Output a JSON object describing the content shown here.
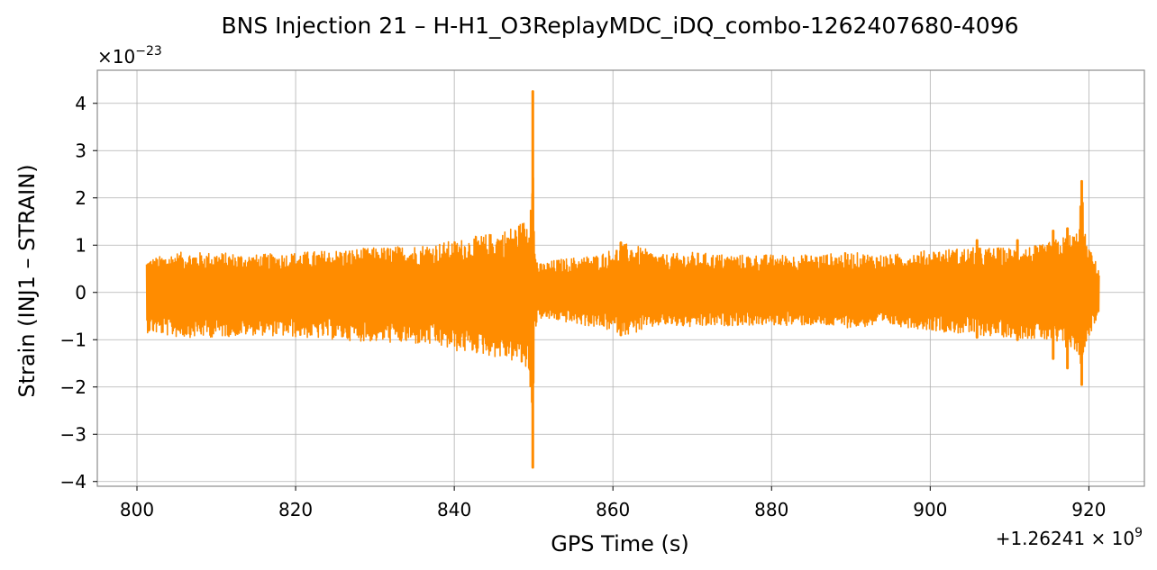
{
  "chart_data": {
    "type": "line",
    "title": "BNS Injection 21 – H-H1_O3ReplayMDC_iDQ_combo-1262407680-4096",
    "xlabel": "GPS Time (s)",
    "ylabel": "Strain (INJ1 – STRAIN)",
    "x_offset_label": "+1.26241 × 10",
    "x_offset_exp": "9",
    "y_scale_label": "×10",
    "y_scale_exp": "−23",
    "xlim": [
      795,
      927
    ],
    "ylim": [
      -4.1,
      4.7
    ],
    "x_ticks": [
      {
        "value": 800,
        "label": "800"
      },
      {
        "value": 820,
        "label": "820"
      },
      {
        "value": 840,
        "label": "840"
      },
      {
        "value": 860,
        "label": "860"
      },
      {
        "value": 880,
        "label": "880"
      },
      {
        "value": 900,
        "label": "900"
      },
      {
        "value": 920,
        "label": "920"
      }
    ],
    "y_ticks": [
      {
        "value": 4,
        "label": "4"
      },
      {
        "value": 3,
        "label": "3"
      },
      {
        "value": 2,
        "label": "2"
      },
      {
        "value": 1,
        "label": "1"
      },
      {
        "value": 0,
        "label": "0"
      },
      {
        "value": -1,
        "label": "−1"
      },
      {
        "value": -2,
        "label": "−2"
      },
      {
        "value": -3,
        "label": "−3"
      },
      {
        "value": -4,
        "label": "−4"
      }
    ],
    "grid": true,
    "series": [
      {
        "color": "#ff8c00",
        "envelope": {
          "x": [
            801.2,
            805,
            810,
            815,
            820,
            825,
            830,
            835,
            838,
            840,
            843,
            846,
            848,
            849.5,
            849.9,
            850.1,
            850.6,
            853,
            858,
            862,
            866,
            870,
            875,
            880,
            885,
            890,
            895,
            900,
            905,
            910,
            914,
            917,
            918.5,
            919.1,
            919.6,
            921.3
          ],
          "upper": [
            0.7,
            0.85,
            0.85,
            0.8,
            0.85,
            0.9,
            0.95,
            1.0,
            1.05,
            1.1,
            1.2,
            1.3,
            1.45,
            1.6,
            4.25,
            1.0,
            0.6,
            0.7,
            0.8,
            1.05,
            0.8,
            0.85,
            0.8,
            0.8,
            0.8,
            0.85,
            0.8,
            0.9,
            0.95,
            0.95,
            1.0,
            1.2,
            1.3,
            2.35,
            1.1,
            0.5
          ],
          "lower": [
            -0.85,
            -0.95,
            -0.95,
            -0.9,
            -0.95,
            -1.0,
            -1.05,
            -1.1,
            -1.15,
            -1.25,
            -1.3,
            -1.4,
            -1.5,
            -1.75,
            -3.7,
            -0.9,
            -0.55,
            -0.6,
            -0.75,
            -0.9,
            -0.7,
            -0.75,
            -0.7,
            -0.7,
            -0.7,
            -0.75,
            -0.7,
            -0.8,
            -0.9,
            -0.95,
            -1.0,
            -1.2,
            -1.3,
            -1.95,
            -1.1,
            -0.45
          ]
        },
        "spikes": [
          {
            "x": 849.9,
            "y_min": -3.7,
            "y_max": 4.25
          },
          {
            "x": 919.1,
            "y_min": -1.95,
            "y_max": 2.35
          },
          {
            "x": 861.0,
            "y_min": -0.9,
            "y_max": 1.05
          },
          {
            "x": 905.9,
            "y_min": -0.95,
            "y_max": 1.1
          },
          {
            "x": 911.0,
            "y_min": -1.0,
            "y_max": 1.1
          },
          {
            "x": 915.5,
            "y_min": -1.4,
            "y_max": 1.3
          },
          {
            "x": 917.3,
            "y_min": -1.6,
            "y_max": 1.35
          }
        ]
      }
    ]
  }
}
